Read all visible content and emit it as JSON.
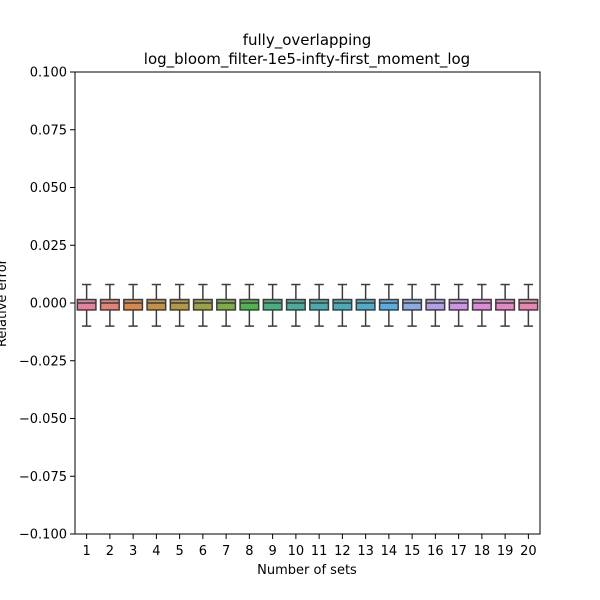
{
  "chart_data": {
    "type": "box",
    "title": "fully_overlapping",
    "subtitle": "log_bloom_filter-1e5-infty-first_moment_log",
    "xlabel": "Number of sets",
    "ylabel": "Relative error",
    "ylim": [
      -0.1,
      0.1
    ],
    "yticks": [
      -0.1,
      -0.075,
      -0.05,
      -0.025,
      0.0,
      0.025,
      0.05,
      0.075,
      0.1
    ],
    "ytick_labels": [
      "−0.100",
      "−0.075",
      "−0.050",
      "−0.025",
      "0.000",
      "0.025",
      "0.050",
      "0.075",
      "0.100"
    ],
    "grid": false,
    "categories": [
      "1",
      "2",
      "3",
      "4",
      "5",
      "6",
      "7",
      "8",
      "9",
      "10",
      "11",
      "12",
      "13",
      "14",
      "15",
      "16",
      "17",
      "18",
      "19",
      "20"
    ],
    "boxes": [
      {
        "category": "1",
        "whisker_low": -0.01,
        "q1": -0.003,
        "median": 0.0,
        "q3": 0.0015,
        "whisker_high": 0.008,
        "color": "#e5819f"
      },
      {
        "category": "2",
        "whisker_low": -0.01,
        "q1": -0.003,
        "median": 0.0,
        "q3": 0.0015,
        "whisker_high": 0.008,
        "color": "#e38377"
      },
      {
        "category": "3",
        "whisker_low": -0.01,
        "q1": -0.003,
        "median": 0.0,
        "q3": 0.0015,
        "whisker_high": 0.008,
        "color": "#d8894b"
      },
      {
        "category": "4",
        "whisker_low": -0.01,
        "q1": -0.003,
        "median": 0.0,
        "q3": 0.0015,
        "whisker_high": 0.008,
        "color": "#c39244"
      },
      {
        "category": "5",
        "whisker_low": -0.01,
        "q1": -0.003,
        "median": 0.0,
        "q3": 0.0015,
        "whisker_high": 0.008,
        "color": "#b19a46"
      },
      {
        "category": "6",
        "whisker_low": -0.01,
        "q1": -0.003,
        "median": 0.0,
        "q3": 0.0015,
        "whisker_high": 0.008,
        "color": "#9da246"
      },
      {
        "category": "7",
        "whisker_low": -0.01,
        "q1": -0.003,
        "median": 0.0,
        "q3": 0.0015,
        "whisker_high": 0.008,
        "color": "#7fab49"
      },
      {
        "category": "8",
        "whisker_low": -0.01,
        "q1": -0.003,
        "median": 0.0,
        "q3": 0.0015,
        "whisker_high": 0.008,
        "color": "#4eb44e"
      },
      {
        "category": "9",
        "whisker_low": -0.01,
        "q1": -0.003,
        "median": 0.0,
        "q3": 0.0015,
        "whisker_high": 0.008,
        "color": "#48b080"
      },
      {
        "category": "10",
        "whisker_low": -0.01,
        "q1": -0.003,
        "median": 0.0,
        "q3": 0.0015,
        "whisker_high": 0.008,
        "color": "#4aad98"
      },
      {
        "category": "11",
        "whisker_low": -0.01,
        "q1": -0.003,
        "median": 0.0,
        "q3": 0.0015,
        "whisker_high": 0.008,
        "color": "#4aabaa"
      },
      {
        "category": "12",
        "whisker_low": -0.01,
        "q1": -0.003,
        "median": 0.0,
        "q3": 0.0015,
        "whisker_high": 0.008,
        "color": "#4cabb9"
      },
      {
        "category": "13",
        "whisker_low": -0.01,
        "q1": -0.003,
        "median": 0.0,
        "q3": 0.0015,
        "whisker_high": 0.008,
        "color": "#50acc9"
      },
      {
        "category": "14",
        "whisker_low": -0.01,
        "q1": -0.003,
        "median": 0.0,
        "q3": 0.0015,
        "whisker_high": 0.008,
        "color": "#58aee0"
      },
      {
        "category": "15",
        "whisker_low": -0.01,
        "q1": -0.003,
        "median": 0.0,
        "q3": 0.0015,
        "whisker_high": 0.008,
        "color": "#8fa9e3"
      },
      {
        "category": "16",
        "whisker_low": -0.01,
        "q1": -0.003,
        "median": 0.0,
        "q3": 0.0015,
        "whisker_high": 0.008,
        "color": "#b1a0e6"
      },
      {
        "category": "17",
        "whisker_low": -0.01,
        "q1": -0.003,
        "median": 0.0,
        "q3": 0.0015,
        "whisker_high": 0.008,
        "color": "#cc95e6"
      },
      {
        "category": "18",
        "whisker_low": -0.01,
        "q1": -0.003,
        "median": 0.0,
        "q3": 0.0015,
        "whisker_high": 0.008,
        "color": "#df8ad8"
      },
      {
        "category": "19",
        "whisker_low": -0.01,
        "q1": -0.003,
        "median": 0.0,
        "q3": 0.0015,
        "whisker_high": 0.008,
        "color": "#e487c2"
      },
      {
        "category": "20",
        "whisker_low": -0.01,
        "q1": -0.003,
        "median": 0.0,
        "q3": 0.0015,
        "whisker_high": 0.008,
        "color": "#e686b1"
      }
    ]
  }
}
